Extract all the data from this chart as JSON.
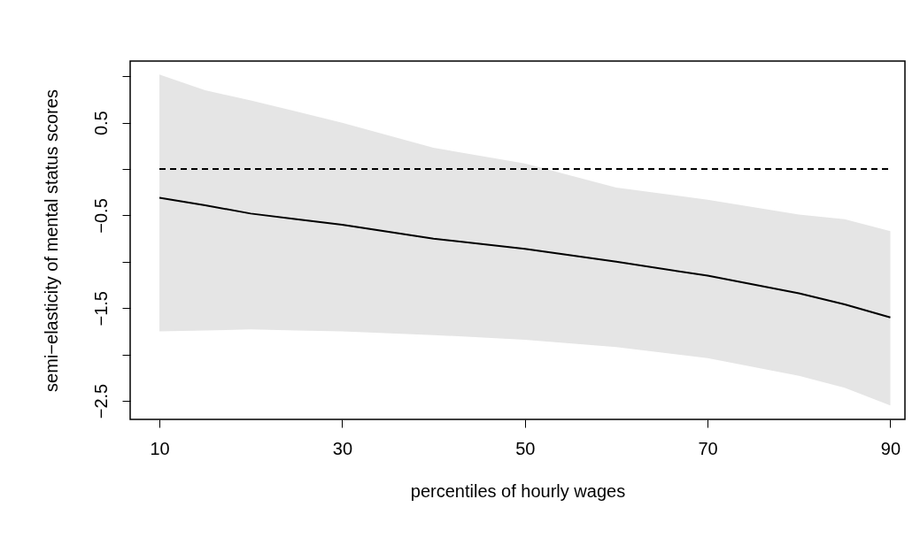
{
  "chart_data": {
    "type": "line",
    "xlabel": "percentiles of hourly wages",
    "ylabel": "semi−elasticity of mental status scores",
    "x": [
      10,
      15,
      20,
      25,
      30,
      40,
      50,
      60,
      70,
      80,
      85,
      90
    ],
    "series": [
      {
        "color": "#000000",
        "values": [
          -0.31,
          -0.39,
          -0.48,
          -0.54,
          -0.6,
          -0.75,
          -0.86,
          -1.0,
          -1.15,
          -1.34,
          -1.46,
          -1.6
        ],
        "lower": [
          -1.75,
          -1.74,
          -1.73,
          -1.74,
          -1.75,
          -1.79,
          -1.84,
          -1.92,
          -2.04,
          -2.23,
          -2.36,
          -2.55
        ],
        "upper": [
          1.02,
          0.85,
          0.74,
          0.62,
          0.5,
          0.23,
          0.06,
          -0.2,
          -0.33,
          -0.49,
          -0.54,
          -0.67
        ]
      },
      {
        "type": "line",
        "color": "#000000",
        "line_style": "dashed",
        "x": [
          10,
          90
        ],
        "values": [
          0,
          0
        ]
      }
    ],
    "xlim": [
      6.8,
      91.6
    ],
    "ylim": [
      -2.7,
      1.165
    ],
    "xticks": [
      10,
      30,
      50,
      70,
      90
    ],
    "yticks": [
      {
        "value": -2.5,
        "label": "−2.5"
      },
      {
        "value": -2,
        "label": null
      },
      {
        "value": -1.5,
        "label": "−1.5"
      },
      {
        "value": -1,
        "label": null
      },
      {
        "value": -0.5,
        "label": "−0.5"
      },
      {
        "value": 0,
        "label": null
      },
      0.5,
      {
        "value": 1,
        "label": null
      }
    ],
    "grid": false
  }
}
